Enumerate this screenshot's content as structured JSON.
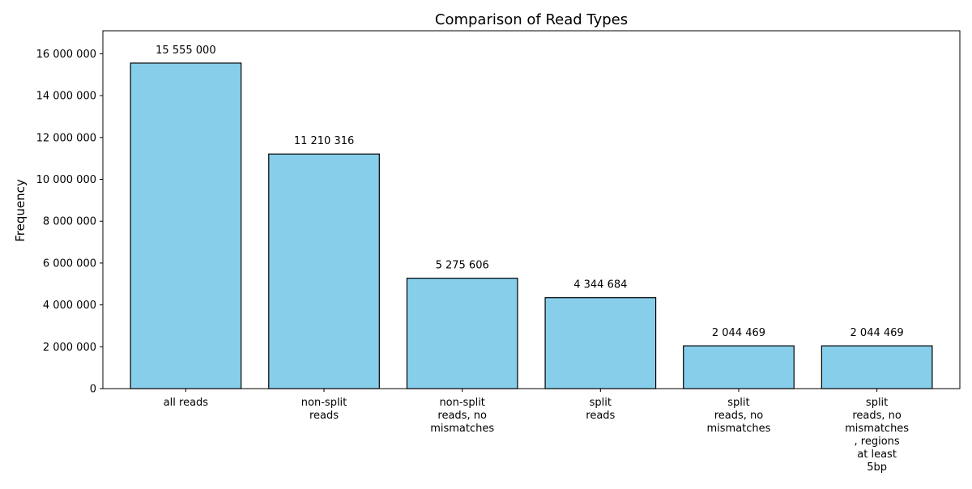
{
  "chart_data": {
    "type": "bar",
    "title": "Comparison of Read Types",
    "xlabel": "",
    "ylabel": "Frequency",
    "categories": [
      [
        "all reads"
      ],
      [
        "non-split",
        "reads"
      ],
      [
        "non-split",
        "reads, no",
        "mismatches"
      ],
      [
        "split",
        "reads"
      ],
      [
        "split",
        "reads, no",
        "mismatches"
      ],
      [
        "split",
        "reads, no",
        "mismatches",
        ", regions",
        "at least",
        "5bp"
      ]
    ],
    "values": [
      15555000,
      11210316,
      5275606,
      4344684,
      2044469,
      2044469
    ],
    "value_labels": [
      "15 555 000",
      "11 210 316",
      "5 275 606",
      "4 344 684",
      "2 044 469",
      "2 044 469"
    ],
    "yticks": [
      0,
      2000000,
      4000000,
      6000000,
      8000000,
      10000000,
      12000000,
      14000000,
      16000000
    ],
    "ytick_labels": [
      "0",
      "2 000 000",
      "4 000 000",
      "6 000 000",
      "8 000 000",
      "10 000 000",
      "12 000 000",
      "14 000 000",
      "16 000 000"
    ],
    "ylim": [
      0,
      17100000
    ],
    "grid": false,
    "bar_color": "#87CEEB",
    "edge_color": "#000000"
  }
}
